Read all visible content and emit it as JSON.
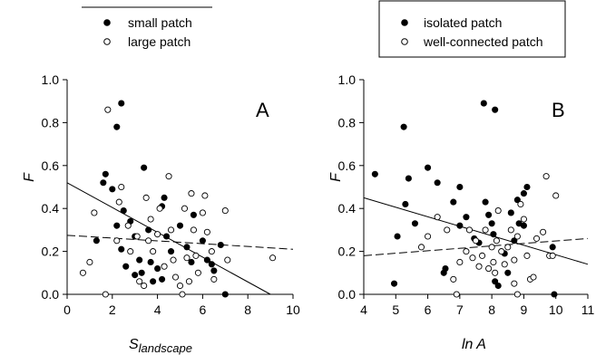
{
  "chart_data": [
    {
      "type": "scatter",
      "panel_label": "A",
      "xlabel_main": "S",
      "xlabel_sub": "landscape",
      "ylabel": "F",
      "xlim": [
        0,
        10
      ],
      "ylim": [
        0.0,
        1.0
      ],
      "xticks": [
        "0",
        "2",
        "4",
        "6",
        "8",
        "10"
      ],
      "yticks": [
        "0.0",
        "0.2",
        "0.4",
        "0.6",
        "0.8",
        "1.0"
      ],
      "legend": {
        "placement": "top",
        "boxed": false
      },
      "series": [
        {
          "name": "small patch",
          "marker": "filled-circle",
          "points": [
            [
              1.3,
              0.25
            ],
            [
              1.6,
              0.52
            ],
            [
              1.7,
              0.56
            ],
            [
              2.0,
              0.49
            ],
            [
              2.2,
              0.78
            ],
            [
              2.4,
              0.89
            ],
            [
              2.2,
              0.32
            ],
            [
              2.5,
              0.39
            ],
            [
              2.8,
              0.34
            ],
            [
              2.4,
              0.21
            ],
            [
              2.6,
              0.13
            ],
            [
              3.0,
              0.09
            ],
            [
              3.2,
              0.16
            ],
            [
              3.3,
              0.1
            ],
            [
              3.0,
              0.27
            ],
            [
              3.4,
              0.59
            ],
            [
              3.6,
              0.3
            ],
            [
              3.7,
              0.15
            ],
            [
              3.8,
              0.06
            ],
            [
              4.0,
              0.12
            ],
            [
              4.2,
              0.41
            ],
            [
              4.3,
              0.45
            ],
            [
              4.4,
              0.27
            ],
            [
              4.6,
              0.2
            ],
            [
              4.2,
              0.07
            ],
            [
              5.0,
              0.32
            ],
            [
              5.3,
              0.22
            ],
            [
              5.5,
              0.15
            ],
            [
              5.6,
              0.37
            ],
            [
              6.0,
              0.25
            ],
            [
              6.2,
              0.16
            ],
            [
              6.4,
              0.14
            ],
            [
              6.5,
              0.11
            ],
            [
              6.8,
              0.23
            ],
            [
              7.0,
              0.0
            ]
          ]
        },
        {
          "name": "large patch",
          "marker": "open-circle",
          "points": [
            [
              0.7,
              0.1
            ],
            [
              1.0,
              0.15
            ],
            [
              1.2,
              0.38
            ],
            [
              1.8,
              0.86
            ],
            [
              1.7,
              0.0
            ],
            [
              2.2,
              0.25
            ],
            [
              2.3,
              0.43
            ],
            [
              2.4,
              0.5
            ],
            [
              2.7,
              0.32
            ],
            [
              2.8,
              0.2
            ],
            [
              3.1,
              0.27
            ],
            [
              3.2,
              0.06
            ],
            [
              3.4,
              0.04
            ],
            [
              3.5,
              0.45
            ],
            [
              3.6,
              0.25
            ],
            [
              3.7,
              0.35
            ],
            [
              3.8,
              0.2
            ],
            [
              4.0,
              0.28
            ],
            [
              4.1,
              0.4
            ],
            [
              4.3,
              0.13
            ],
            [
              4.5,
              0.55
            ],
            [
              4.6,
              0.3
            ],
            [
              4.7,
              0.16
            ],
            [
              4.8,
              0.08
            ],
            [
              5.0,
              0.04
            ],
            [
              5.2,
              0.4
            ],
            [
              5.3,
              0.17
            ],
            [
              5.4,
              0.06
            ],
            [
              5.5,
              0.47
            ],
            [
              5.6,
              0.3
            ],
            [
              5.7,
              0.18
            ],
            [
              5.8,
              0.1
            ],
            [
              6.0,
              0.38
            ],
            [
              6.1,
              0.46
            ],
            [
              6.2,
              0.29
            ],
            [
              6.4,
              0.2
            ],
            [
              6.5,
              0.07
            ],
            [
              5.1,
              0.0
            ],
            [
              7.0,
              0.39
            ],
            [
              7.1,
              0.16
            ],
            [
              9.1,
              0.17
            ]
          ]
        }
      ],
      "fit_lines": [
        {
          "series": "small patch",
          "style": "solid",
          "x": [
            0,
            9.0
          ],
          "y": [
            0.52,
            0.0
          ]
        },
        {
          "series": "large patch",
          "style": "dashed",
          "x": [
            0,
            10
          ],
          "y": [
            0.275,
            0.21
          ]
        }
      ]
    },
    {
      "type": "scatter",
      "panel_label": "B",
      "xlabel_main": "ln A",
      "xlabel_sub": "",
      "ylabel": "F",
      "xlim": [
        4,
        11
      ],
      "ylim": [
        0.0,
        1.0
      ],
      "xticks": [
        "4",
        "5",
        "6",
        "7",
        "8",
        "9",
        "10",
        "11"
      ],
      "yticks": [
        "0.0",
        "0.2",
        "0.4",
        "0.6",
        "0.8",
        "1.0"
      ],
      "legend": {
        "placement": "top",
        "boxed": true
      },
      "series": [
        {
          "name": "isolated patch",
          "marker": "filled-circle",
          "points": [
            [
              4.35,
              0.56
            ],
            [
              4.95,
              0.05
            ],
            [
              5.05,
              0.27
            ],
            [
              5.25,
              0.78
            ],
            [
              5.3,
              0.42
            ],
            [
              5.4,
              0.54
            ],
            [
              5.6,
              0.33
            ],
            [
              6.0,
              0.59
            ],
            [
              6.3,
              0.52
            ],
            [
              6.5,
              0.1
            ],
            [
              6.55,
              0.12
            ],
            [
              6.8,
              0.43
            ],
            [
              7.0,
              0.5
            ],
            [
              7.0,
              0.32
            ],
            [
              7.2,
              0.36
            ],
            [
              7.45,
              0.26
            ],
            [
              7.6,
              0.24
            ],
            [
              7.75,
              0.89
            ],
            [
              7.8,
              0.43
            ],
            [
              7.9,
              0.37
            ],
            [
              8.0,
              0.33
            ],
            [
              8.05,
              0.28
            ],
            [
              8.1,
              0.86
            ],
            [
              8.1,
              0.06
            ],
            [
              8.2,
              0.04
            ],
            [
              8.4,
              0.19
            ],
            [
              8.5,
              0.1
            ],
            [
              8.6,
              0.38
            ],
            [
              8.7,
              0.25
            ],
            [
              8.8,
              0.44
            ],
            [
              8.85,
              0.33
            ],
            [
              9.0,
              0.47
            ],
            [
              9.1,
              0.5
            ],
            [
              9.0,
              0.32
            ],
            [
              9.9,
              0.22
            ],
            [
              9.95,
              0.0
            ]
          ]
        },
        {
          "name": "well-connected patch",
          "marker": "open-circle",
          "points": [
            [
              5.8,
              0.22
            ],
            [
              6.0,
              0.27
            ],
            [
              6.3,
              0.36
            ],
            [
              6.6,
              0.3
            ],
            [
              6.8,
              0.07
            ],
            [
              6.9,
              0.0
            ],
            [
              7.0,
              0.15
            ],
            [
              7.2,
              0.2
            ],
            [
              7.3,
              0.3
            ],
            [
              7.4,
              0.17
            ],
            [
              7.5,
              0.25
            ],
            [
              7.6,
              0.13
            ],
            [
              7.7,
              0.18
            ],
            [
              7.8,
              0.3
            ],
            [
              7.9,
              0.12
            ],
            [
              8.0,
              0.22
            ],
            [
              8.05,
              0.15
            ],
            [
              8.1,
              0.1
            ],
            [
              8.15,
              0.25
            ],
            [
              8.2,
              0.39
            ],
            [
              8.3,
              0.2
            ],
            [
              8.4,
              0.14
            ],
            [
              8.5,
              0.22
            ],
            [
              8.6,
              0.3
            ],
            [
              8.7,
              0.16
            ],
            [
              8.8,
              0.27
            ],
            [
              8.7,
              0.05
            ],
            [
              8.8,
              0.0
            ],
            [
              8.9,
              0.42
            ],
            [
              9.0,
              0.35
            ],
            [
              9.1,
              0.18
            ],
            [
              9.2,
              0.07
            ],
            [
              9.3,
              0.08
            ],
            [
              9.4,
              0.26
            ],
            [
              9.6,
              0.29
            ],
            [
              9.7,
              0.55
            ],
            [
              9.8,
              0.18
            ],
            [
              9.9,
              0.18
            ],
            [
              10.0,
              0.46
            ]
          ]
        }
      ],
      "fit_lines": [
        {
          "series": "isolated patch",
          "style": "solid",
          "x": [
            4,
            11
          ],
          "y": [
            0.45,
            0.14
          ]
        },
        {
          "series": "well-connected patch",
          "style": "dashed",
          "x": [
            4,
            11
          ],
          "y": [
            0.18,
            0.26
          ]
        }
      ]
    }
  ]
}
